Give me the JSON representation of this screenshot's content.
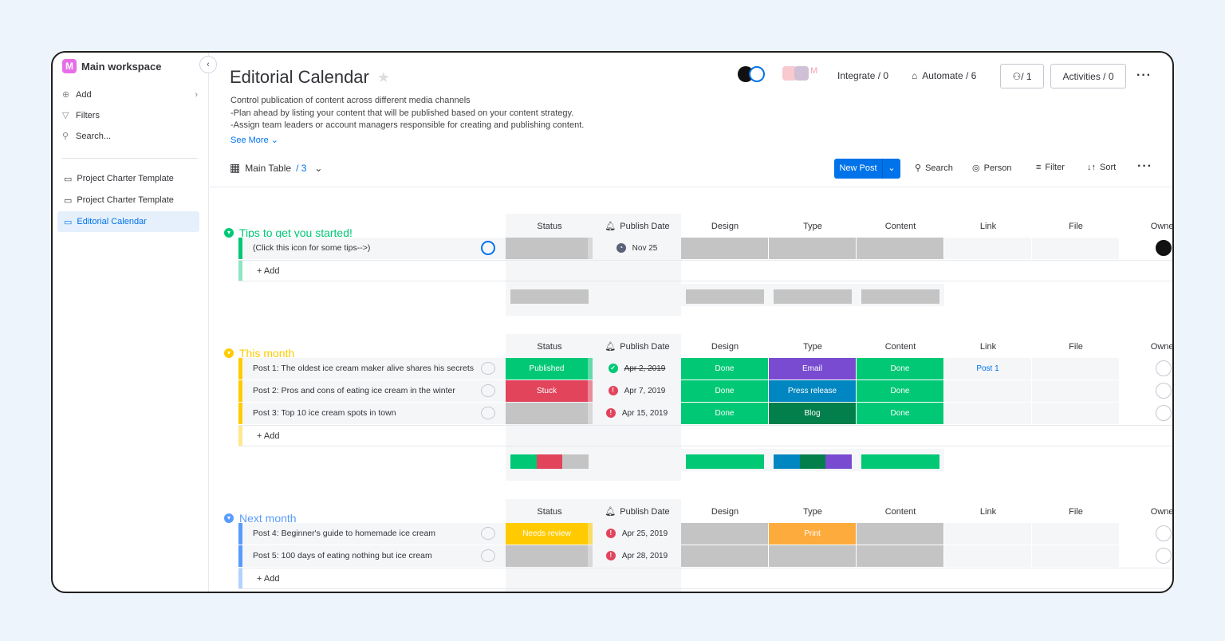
{
  "sidebar": {
    "workspace": "Main workspace",
    "workspace_initial": "M",
    "add": "Add",
    "filters": "Filters",
    "search": "Search...",
    "boards": [
      "Project Charter Template",
      "Project Charter Template",
      "Editorial Calendar"
    ]
  },
  "header": {
    "title": "Editorial Calendar",
    "description": [
      "Control publication of content across different media channels",
      "-Plan ahead by listing your content that will be published based on your content strategy.",
      "-Assign team leaders or account managers responsible for creating and publishing content."
    ],
    "see_more": "See More",
    "integrate": "Integrate / 0",
    "automate": "Automate / 6",
    "members": "1",
    "activities": "Activities / 0"
  },
  "toolbar": {
    "view": "Main Table",
    "view_count": "/ 3",
    "new_post": "New Post",
    "search": "Search",
    "person": "Person",
    "filter": "Filter",
    "sort": "Sort"
  },
  "columns": [
    "Status",
    "Publish Date",
    "Design",
    "Type",
    "Content",
    "Link",
    "File",
    "Owner"
  ],
  "colors": {
    "green": "#00c875",
    "red": "#e2445c",
    "grey": "#c4c4c4",
    "purple": "#784bd1",
    "blue": "#0086c0",
    "darkgreen": "#037f4c",
    "yellow": "#ffcb00",
    "orange": "#fdab3d"
  },
  "groups": [
    {
      "title": "Tips to get you started!",
      "color": "#00c875",
      "add": "+ Add",
      "rows": [
        {
          "name": "(Click this icon for some tips-->)",
          "status": {
            "label": "",
            "color": "#c4c4c4"
          },
          "date": "Nov 25",
          "date_icon": "clock",
          "design": {
            "label": "",
            "color": "#c4c4c4"
          },
          "type": {
            "label": "",
            "color": "#c4c4c4"
          },
          "content": {
            "label": "",
            "color": "#c4c4c4"
          },
          "link": "",
          "owner": "filled"
        }
      ],
      "summary": {
        "status": [
          [
            "#c4c4c4",
            1
          ]
        ],
        "design": [
          [
            "#c4c4c4",
            1
          ]
        ],
        "type": [
          [
            "#c4c4c4",
            1
          ]
        ],
        "content": [
          [
            "#c4c4c4",
            1
          ]
        ]
      }
    },
    {
      "title": "This month",
      "color": "#ffcb00",
      "add": "+ Add",
      "rows": [
        {
          "name": "Post 1: The oldest ice cream maker alive shares his secrets",
          "status": {
            "label": "Published",
            "color": "#00c875"
          },
          "date": "Apr 2, 2019",
          "date_icon": "check",
          "date_struck": true,
          "design": {
            "label": "Done",
            "color": "#00c875"
          },
          "type": {
            "label": "Email",
            "color": "#784bd1"
          },
          "content": {
            "label": "Done",
            "color": "#00c875"
          },
          "link": "Post 1",
          "owner": "empty"
        },
        {
          "name": "Post 2: Pros and cons of eating ice cream in the winter",
          "status": {
            "label": "Stuck",
            "color": "#e2445c"
          },
          "date": "Apr 7, 2019",
          "date_icon": "alert",
          "design": {
            "label": "Done",
            "color": "#00c875"
          },
          "type": {
            "label": "Press release",
            "color": "#0086c0"
          },
          "content": {
            "label": "Done",
            "color": "#00c875"
          },
          "link": "",
          "owner": "empty"
        },
        {
          "name": "Post 3: Top 10 ice cream spots in town",
          "status": {
            "label": "",
            "color": "#c4c4c4"
          },
          "date": "Apr 15, 2019",
          "date_icon": "alert",
          "design": {
            "label": "Done",
            "color": "#00c875"
          },
          "type": {
            "label": "Blog",
            "color": "#037f4c"
          },
          "content": {
            "label": "Done",
            "color": "#00c875"
          },
          "link": "",
          "owner": "empty"
        }
      ],
      "summary": {
        "status": [
          [
            "#00c875",
            1
          ],
          [
            "#e2445c",
            1
          ],
          [
            "#c4c4c4",
            1
          ]
        ],
        "design": [
          [
            "#00c875",
            3
          ]
        ],
        "type": [
          [
            "#0086c0",
            1
          ],
          [
            "#037f4c",
            1
          ],
          [
            "#784bd1",
            1
          ]
        ],
        "content": [
          [
            "#00c875",
            3
          ]
        ]
      }
    },
    {
      "title": "Next month",
      "color": "#579bfc",
      "add": "+ Add",
      "rows": [
        {
          "name": "Post 4: Beginner's guide to homemade ice cream",
          "status": {
            "label": "Needs review",
            "color": "#ffcb00"
          },
          "date": "Apr 25, 2019",
          "date_icon": "alert",
          "design": {
            "label": "",
            "color": "#c4c4c4"
          },
          "type": {
            "label": "Print",
            "color": "#fdab3d"
          },
          "content": {
            "label": "",
            "color": "#c4c4c4"
          },
          "link": "",
          "owner": "empty"
        },
        {
          "name": "Post 5: 100 days of eating nothing but ice cream",
          "status": {
            "label": "",
            "color": "#c4c4c4"
          },
          "date": "Apr 28, 2019",
          "date_icon": "alert",
          "design": {
            "label": "",
            "color": "#c4c4c4"
          },
          "type": {
            "label": "",
            "color": "#c4c4c4"
          },
          "content": {
            "label": "",
            "color": "#c4c4c4"
          },
          "link": "",
          "owner": "empty"
        }
      ],
      "summary": null
    }
  ]
}
